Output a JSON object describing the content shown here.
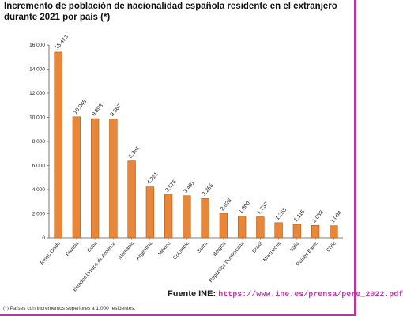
{
  "chart_data": {
    "type": "bar",
    "title": "Incremento de población de nacionalidad española residente en el extranjero durante 2021 por país (*)",
    "categories": [
      "Reino Unido",
      "Francia",
      "Cuba",
      "Estados Unidos de América",
      "Alemania",
      "Argentina",
      "México",
      "Colombia",
      "Suiza",
      "Bélgica",
      "República Dominicana",
      "Brasil",
      "Marruecos",
      "Italia",
      "Países Bajos",
      "Chile"
    ],
    "values": [
      15413,
      10045,
      9898,
      9867,
      6381,
      4221,
      3576,
      3491,
      3265,
      2028,
      1800,
      1737,
      1258,
      1115,
      1033,
      1004
    ],
    "value_labels": [
      "15.413",
      "10.045",
      "9.898",
      "9.867",
      "6.381",
      "4.221",
      "3.576",
      "3.491",
      "3.265",
      "2.028",
      "1.800",
      "1.737",
      "1.258",
      "1.115",
      "1.033",
      "1.004"
    ],
    "yticks": [
      0,
      2000,
      4000,
      6000,
      8000,
      10000,
      12000,
      14000,
      16000
    ],
    "ytick_labels": [
      "0",
      "2.000",
      "4.000",
      "6.000",
      "8.000",
      "10.000",
      "12.000",
      "14.000",
      "16.000"
    ],
    "ylim": [
      0,
      16000
    ],
    "xlabel": "",
    "ylabel": "",
    "bar_color": "#e8873a",
    "bar_edge": "#b35c12"
  },
  "source": {
    "label": "Fuente INE:",
    "url": "https://www.ine.es/prensa/pere_2022.pdf"
  },
  "footnote": "(*) Países con incrementos superiores a 1.000 residentes.",
  "frame_color": "#b23a9a"
}
